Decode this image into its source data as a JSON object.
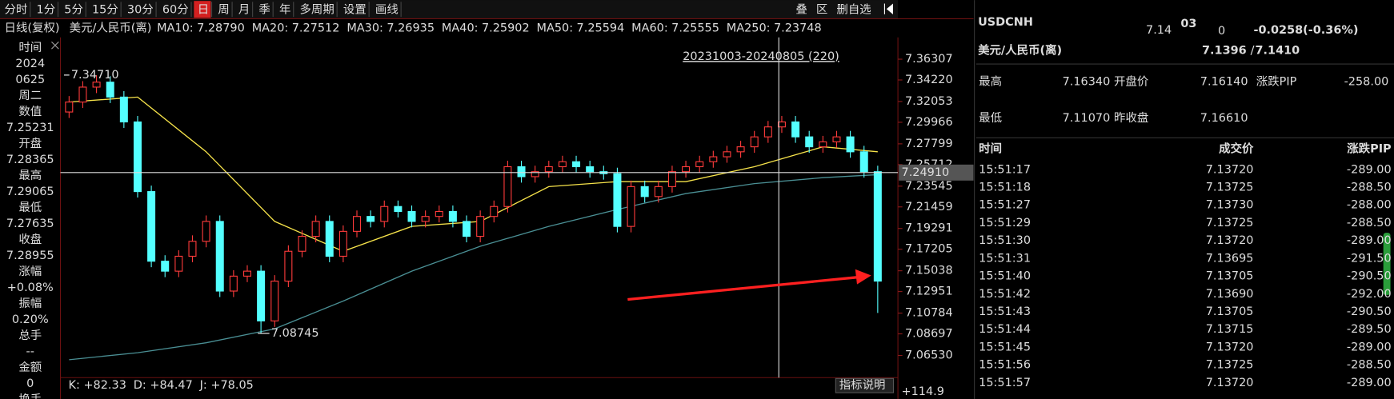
{
  "toolbar": {
    "tabs": [
      "分时",
      "1分",
      "5分",
      "15分",
      "30分",
      "60分",
      "日",
      "周",
      "月",
      "季",
      "年",
      "多周期",
      "设置",
      "画线"
    ],
    "active": 6,
    "right": [
      "叠",
      "区",
      "删自选"
    ]
  },
  "legend": {
    "mode": "日线(复权)",
    "symbol": "美元/人民币(离)",
    "mas": [
      {
        "label": "MA10:",
        "value": "7.28790",
        "color": "#ffffff"
      },
      {
        "label": "MA20:",
        "value": "7.27512",
        "color": "#f5e24a"
      },
      {
        "label": "MA30:",
        "value": "7.26935",
        "color": "#ff3ca0"
      },
      {
        "label": "MA40:",
        "value": "7.25902",
        "color": "#3fd24a"
      },
      {
        "label": "MA50:",
        "value": "7.25594",
        "color": "#ffffff"
      },
      {
        "label": "MA60:",
        "value": "7.25555",
        "color": "#f5e24a"
      },
      {
        "label": "MA250:",
        "value": "7.23748",
        "color": "#4a8f94"
      }
    ]
  },
  "info_panel": [
    {
      "label": "时间",
      "values": [
        "2024",
        "0625",
        "周二"
      ],
      "color": "#ffffff"
    },
    {
      "label": "数值",
      "values": [
        "7.25231"
      ],
      "color": "#ff3b3b"
    },
    {
      "label": "开盘",
      "values": [
        "7.28365"
      ],
      "color": "#ff3b3b"
    },
    {
      "label": "最高",
      "values": [
        "7.29065"
      ],
      "color": "#ff3b3b"
    },
    {
      "label": "最低",
      "values": [
        "7.27635"
      ],
      "color": "#3fd24a"
    },
    {
      "label": "收盘",
      "values": [
        "7.28955"
      ],
      "color": "#ff3b3b"
    },
    {
      "label": "涨幅",
      "values": [
        "+0.08%"
      ],
      "color": "#ff3b3b"
    },
    {
      "label": "振幅",
      "values": [
        "0.20%"
      ],
      "color": "#ffffff"
    },
    {
      "label": "总手",
      "values": [
        "--"
      ],
      "color": "#ffffff"
    },
    {
      "label": "金额",
      "values": [
        "0"
      ],
      "color": "#ffffff"
    },
    {
      "label": "换手",
      "values": [],
      "color": "#ffffff"
    }
  ],
  "chart": {
    "type": "candlestick",
    "ylim": [
      7.043,
      7.385
    ],
    "yticks": [
      7.36307,
      {
        "value": 7.3422,
        "label": "7.34220"
      },
      7.32053,
      7.29966,
      7.27799,
      7.25712,
      7.23545,
      7.21459,
      7.19291,
      7.17205,
      7.15038,
      7.12951,
      7.10784,
      7.08697,
      {
        "value": 7.0653,
        "label": "7.06530"
      }
    ],
    "crosshair": {
      "value": 7.2491,
      "label": "7.24910"
    },
    "range_label": "20231003-20240805 (220)",
    "high_label": {
      "value": 7.3471,
      "label": "7.34710"
    },
    "low_label": {
      "value": 7.08745,
      "label": "7.08745"
    },
    "up_color": "#ff3b3b",
    "down_color": "#54ffff",
    "candles": [
      [
        7.31,
        7.326,
        7.304,
        7.32
      ],
      [
        7.32,
        7.341,
        7.314,
        7.335
      ],
      [
        7.335,
        7.347,
        7.329,
        7.34
      ],
      [
        7.34,
        7.346,
        7.319,
        7.325
      ],
      [
        7.325,
        7.331,
        7.294,
        7.3
      ],
      [
        7.3,
        7.306,
        7.224,
        7.23
      ],
      [
        7.23,
        7.236,
        7.154,
        7.16
      ],
      [
        7.16,
        7.166,
        7.144,
        7.15
      ],
      [
        7.15,
        7.171,
        7.144,
        7.165
      ],
      [
        7.165,
        7.186,
        7.159,
        7.18
      ],
      [
        7.18,
        7.206,
        7.174,
        7.2
      ],
      [
        7.2,
        7.206,
        7.124,
        7.13
      ],
      [
        7.13,
        7.151,
        7.124,
        7.145
      ],
      [
        7.145,
        7.156,
        7.139,
        7.15
      ],
      [
        7.15,
        7.156,
        7.087,
        7.1
      ],
      [
        7.1,
        7.146,
        7.094,
        7.14
      ],
      [
        7.14,
        7.176,
        7.134,
        7.17
      ],
      [
        7.17,
        7.191,
        7.164,
        7.185
      ],
      [
        7.185,
        7.206,
        7.179,
        7.2
      ],
      [
        7.2,
        7.206,
        7.159,
        7.165
      ],
      [
        7.165,
        7.196,
        7.159,
        7.19
      ],
      [
        7.19,
        7.211,
        7.184,
        7.205
      ],
      [
        7.205,
        7.211,
        7.194,
        7.2
      ],
      [
        7.2,
        7.221,
        7.194,
        7.215
      ],
      [
        7.215,
        7.221,
        7.204,
        7.21
      ],
      [
        7.21,
        7.216,
        7.194,
        7.2
      ],
      [
        7.2,
        7.211,
        7.194,
        7.205
      ],
      [
        7.205,
        7.216,
        7.199,
        7.21
      ],
      [
        7.21,
        7.216,
        7.194,
        7.2
      ],
      [
        7.2,
        7.206,
        7.179,
        7.185
      ],
      [
        7.185,
        7.211,
        7.179,
        7.205
      ],
      [
        7.205,
        7.221,
        7.199,
        7.215
      ],
      [
        7.215,
        7.261,
        7.209,
        7.255
      ],
      [
        7.255,
        7.261,
        7.239,
        7.245
      ],
      [
        7.245,
        7.256,
        7.239,
        7.25
      ],
      [
        7.25,
        7.261,
        7.244,
        7.255
      ],
      [
        7.255,
        7.266,
        7.249,
        7.26
      ],
      [
        7.26,
        7.266,
        7.249,
        7.255
      ],
      [
        7.255,
        7.261,
        7.244,
        7.25
      ],
      [
        7.25,
        7.256,
        7.242,
        7.248
      ],
      [
        7.248,
        7.254,
        7.189,
        7.195
      ],
      [
        7.195,
        7.241,
        7.189,
        7.235
      ],
      [
        7.235,
        7.241,
        7.219,
        7.225
      ],
      [
        7.225,
        7.241,
        7.219,
        7.235
      ],
      [
        7.235,
        7.256,
        7.229,
        7.25
      ],
      [
        7.25,
        7.261,
        7.244,
        7.255
      ],
      [
        7.255,
        7.266,
        7.249,
        7.26
      ],
      [
        7.26,
        7.271,
        7.254,
        7.265
      ],
      [
        7.265,
        7.276,
        7.259,
        7.27
      ],
      [
        7.27,
        7.281,
        7.264,
        7.275
      ],
      [
        7.275,
        7.291,
        7.269,
        7.285
      ],
      [
        7.285,
        7.301,
        7.279,
        7.295
      ],
      [
        7.295,
        7.306,
        7.289,
        7.3
      ],
      [
        7.3,
        7.306,
        7.279,
        7.285
      ],
      [
        7.285,
        7.291,
        7.269,
        7.275
      ],
      [
        7.275,
        7.286,
        7.269,
        7.28
      ],
      [
        7.28,
        7.291,
        7.274,
        7.285
      ],
      [
        7.285,
        7.291,
        7.264,
        7.27
      ],
      [
        7.27,
        7.276,
        7.244,
        7.25
      ],
      [
        7.25,
        7.256,
        7.108,
        7.14
      ]
    ],
    "ma_lines": [
      {
        "color": "#4a8f94",
        "x": [
          0,
          5,
          10,
          15,
          20,
          25,
          30,
          35,
          40,
          45,
          50,
          55,
          59
        ],
        "values": [
          7.061,
          7.068,
          7.078,
          7.092,
          7.12,
          7.15,
          7.175,
          7.195,
          7.212,
          7.228,
          7.238,
          7.244,
          7.247
        ]
      },
      {
        "color": "#f5e24a",
        "x": [
          0,
          5,
          10,
          15,
          20,
          25,
          30,
          35,
          40,
          45,
          50,
          55,
          59
        ],
        "values": [
          7.32,
          7.325,
          7.27,
          7.2,
          7.17,
          7.195,
          7.2,
          7.235,
          7.24,
          7.24,
          7.255,
          7.275,
          7.27
        ]
      }
    ]
  },
  "indicator": {
    "items": [
      {
        "label": "K: +82.33",
        "color": "#ffffff"
      },
      {
        "label": "D: +84.47",
        "color": "#f5e24a"
      },
      {
        "label": "J: +78.05",
        "color": "#ff3ca0"
      }
    ],
    "help": "指标说明",
    "axis_label": "+114.9"
  },
  "quote": {
    "code": "USDCNH",
    "price_main": "7.14",
    "price_big": "03",
    "price_small": "0",
    "change": "-0.0258(-0.36%)",
    "name": "美元/人民币(离)",
    "bid": "7.1396",
    "sep": " / ",
    "ask": "7.1410",
    "stats": [
      [
        "最高",
        "7.16340",
        "开盘价",
        "7.16140",
        "涨跌PIP",
        "-258.00"
      ],
      [
        "最低",
        "7.11070",
        "昨收盘",
        "7.16610"
      ]
    ]
  },
  "trades": {
    "header": [
      "时间",
      "成交价",
      "涨跌PIP"
    ],
    "rows": [
      [
        "15:51:17",
        "7.13720",
        "-289.00"
      ],
      [
        "15:51:18",
        "7.13725",
        "-288.50"
      ],
      [
        "15:51:27",
        "7.13730",
        "-288.00"
      ],
      [
        "15:51:29",
        "7.13725",
        "-288.50"
      ],
      [
        "15:51:30",
        "7.13720",
        "-289.00"
      ],
      [
        "15:51:31",
        "7.13695",
        "-291.50"
      ],
      [
        "15:51:40",
        "7.13705",
        "-290.50"
      ],
      [
        "15:51:42",
        "7.13690",
        "-292.00"
      ],
      [
        "15:51:43",
        "7.13705",
        "-290.50"
      ],
      [
        "15:51:44",
        "7.13715",
        "-289.50"
      ],
      [
        "15:51:45",
        "7.13720",
        "-289.00"
      ],
      [
        "15:51:56",
        "7.13725",
        "-288.50"
      ],
      [
        "15:51:57",
        "7.13720",
        "-289.00"
      ]
    ]
  }
}
